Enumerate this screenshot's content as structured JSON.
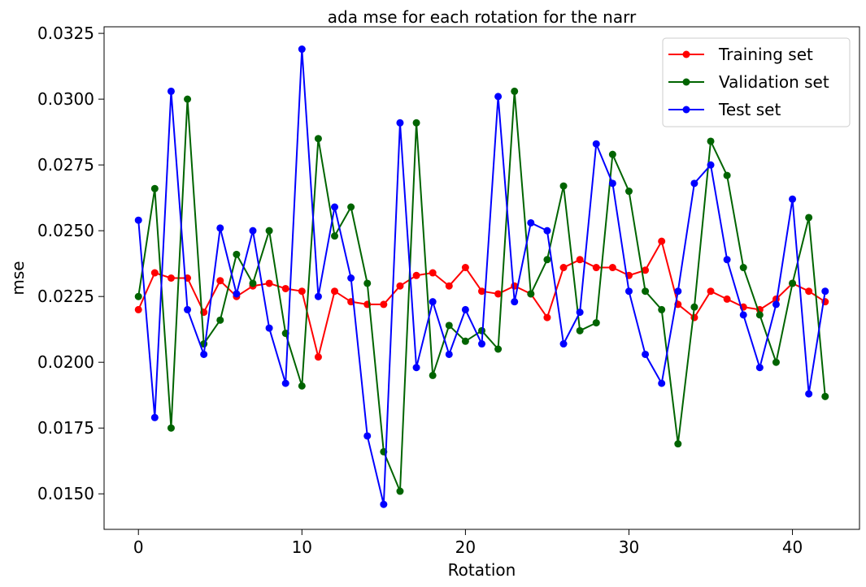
{
  "chart_data": {
    "type": "line",
    "title": "ada mse for each rotation for the narr",
    "xlabel": "Rotation",
    "ylabel": "mse",
    "xlim": [
      -2.1,
      44.1
    ],
    "ylim": [
      0.01365,
      0.03275
    ],
    "xticks": [
      0,
      10,
      20,
      30,
      40
    ],
    "xtick_labels": [
      "0",
      "10",
      "20",
      "30",
      "40"
    ],
    "yticks": [
      0.015,
      0.0175,
      0.02,
      0.0225,
      0.025,
      0.0275,
      0.03,
      0.0325
    ],
    "ytick_labels": [
      "0.0150",
      "0.0175",
      "0.0200",
      "0.0225",
      "0.0250",
      "0.0275",
      "0.0300",
      "0.0325"
    ],
    "grid": false,
    "legend_position": "top-right",
    "x": [
      0,
      1,
      2,
      3,
      4,
      5,
      6,
      7,
      8,
      9,
      10,
      11,
      12,
      13,
      14,
      15,
      16,
      17,
      18,
      19,
      20,
      21,
      22,
      23,
      24,
      25,
      26,
      27,
      28,
      29,
      30,
      31,
      32,
      33,
      34,
      35,
      36,
      37,
      38,
      39,
      40,
      41,
      42
    ],
    "series": [
      {
        "name": "Training set",
        "color": "#ff0000",
        "values": [
          0.022,
          0.0234,
          0.0232,
          0.0232,
          0.0219,
          0.0231,
          0.0225,
          0.0229,
          0.023,
          0.0228,
          0.0227,
          0.0202,
          0.0227,
          0.0223,
          0.0222,
          0.0222,
          0.0229,
          0.0233,
          0.0234,
          0.0229,
          0.0236,
          0.0227,
          0.0226,
          0.0229,
          0.0226,
          0.0217,
          0.0236,
          0.0239,
          0.0236,
          0.0236,
          0.0233,
          0.0235,
          0.0246,
          0.0222,
          0.0217,
          0.0227,
          0.0224,
          0.0221,
          0.022,
          0.0224,
          0.023,
          0.0227,
          0.0223
        ]
      },
      {
        "name": "Validation set",
        "color": "#006400",
        "values": [
          0.0225,
          0.0266,
          0.0175,
          0.03,
          0.0207,
          0.0216,
          0.0241,
          0.023,
          0.025,
          0.0211,
          0.0191,
          0.0285,
          0.0248,
          0.0259,
          0.023,
          0.0166,
          0.0151,
          0.0291,
          0.0195,
          0.0214,
          0.0208,
          0.0212,
          0.0205,
          0.0303,
          0.0226,
          0.0239,
          0.0267,
          0.0212,
          0.0215,
          0.0279,
          0.0265,
          0.0227,
          0.022,
          0.0169,
          0.0221,
          0.0284,
          0.0271,
          0.0236,
          0.0218,
          0.02,
          0.023,
          0.0255,
          0.0187
        ]
      },
      {
        "name": "Test set",
        "color": "#0000ff",
        "values": [
          0.0254,
          0.0179,
          0.0303,
          0.022,
          0.0203,
          0.0251,
          0.0226,
          0.025,
          0.0213,
          0.0192,
          0.0319,
          0.0225,
          0.0259,
          0.0232,
          0.0172,
          0.0146,
          0.0291,
          0.0198,
          0.0223,
          0.0203,
          0.022,
          0.0207,
          0.0301,
          0.0223,
          0.0253,
          0.025,
          0.0207,
          0.0219,
          0.0283,
          0.0268,
          0.0227,
          0.0203,
          0.0192,
          0.0227,
          0.0268,
          0.0275,
          0.0239,
          0.0218,
          0.0198,
          0.0222,
          0.0262,
          0.0188,
          0.0227
        ]
      }
    ]
  }
}
